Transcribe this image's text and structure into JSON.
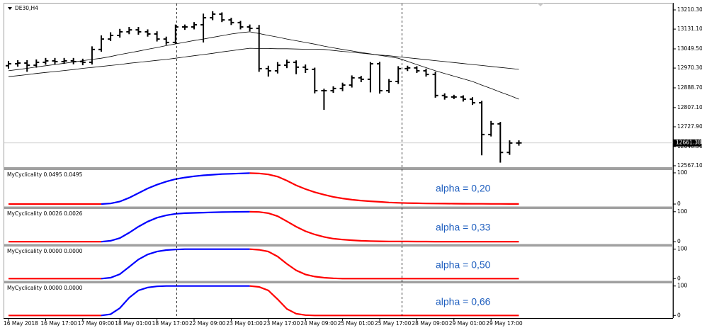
{
  "chart_data": [
    {
      "type": "ohlc",
      "title": "DE30,H4",
      "categories": [
        "16 May 2018",
        null,
        null,
        null,
        "16 May 17:00",
        null,
        null,
        null,
        "17 May 09:00",
        null,
        null,
        null,
        "18 May 01:00",
        null,
        null,
        null,
        "18 May 17:00",
        null,
        null,
        null,
        "22 May 09:00",
        null,
        null,
        null,
        "23 May 01:00",
        null,
        null,
        null,
        "23 May 17:00",
        null,
        null,
        null,
        "24 May 09:00",
        null,
        null,
        null,
        "25 May 01:00",
        null,
        null,
        null,
        "25 May 17:00",
        null,
        null,
        null,
        "28 May 09:00",
        null,
        null,
        null,
        "29 May 01:00",
        null,
        null,
        null,
        "29 May 17:00",
        null,
        null,
        null
      ],
      "open": [
        12980,
        12988,
        12991,
        12982,
        12994,
        13000,
        12997,
        13000,
        12997,
        12994,
        13047,
        13090,
        13105,
        13120,
        13128,
        13120,
        13111,
        13090,
        13076,
        13140,
        13140,
        13149,
        13178,
        13193,
        13169,
        13158,
        13140,
        13134,
        12968,
        12959,
        12982,
        12994,
        12974,
        12965,
        12877,
        12877,
        12886,
        12900,
        12930,
        12924,
        12988,
        12877,
        12915,
        12968,
        12971,
        12959,
        12944,
        12857,
        12851,
        12851,
        12842,
        12827,
        12696,
        12740,
        12622,
        12661
      ],
      "high": [
        13000,
        13003,
        13003,
        13006,
        13012,
        13012,
        13012,
        13012,
        13009,
        13060,
        13105,
        13118,
        13132,
        13140,
        13140,
        13130,
        13122,
        13100,
        13150,
        13150,
        13160,
        13195,
        13205,
        13200,
        13178,
        13165,
        13150,
        13148,
        12980,
        12995,
        13005,
        13002,
        12985,
        12972,
        12885,
        12895,
        12910,
        12940,
        12938,
        12995,
        12996,
        12925,
        12978,
        12980,
        12978,
        12968,
        12955,
        12866,
        12860,
        12858,
        12850,
        12835,
        12752,
        12748,
        12672,
        12672
      ],
      "low": [
        12968,
        12976,
        12955,
        12972,
        12984,
        12986,
        12988,
        12986,
        12982,
        12985,
        13038,
        13082,
        13096,
        13110,
        13108,
        13100,
        13080,
        13066,
        13070,
        13128,
        13130,
        13076,
        13168,
        13160,
        13148,
        13130,
        13122,
        12955,
        12935,
        12948,
        12970,
        12945,
        12950,
        12866,
        12798,
        12868,
        12875,
        12890,
        12912,
        12870,
        12865,
        12868,
        12905,
        12958,
        12950,
        12935,
        12848,
        12840,
        12842,
        12832,
        12818,
        12610,
        12688,
        12580,
        12612,
        12650
      ],
      "close": [
        12988,
        12991,
        12982,
        12994,
        13000,
        12997,
        13000,
        12997,
        12994,
        13047,
        13090,
        13105,
        13120,
        13128,
        13120,
        13111,
        13090,
        13076,
        13140,
        13140,
        13149,
        13178,
        13193,
        13169,
        13158,
        13140,
        13134,
        12968,
        12959,
        12982,
        12994,
        12974,
        12965,
        12877,
        12877,
        12886,
        12900,
        12930,
        12924,
        12988,
        12877,
        12915,
        12968,
        12971,
        12959,
        12944,
        12857,
        12851,
        12851,
        12842,
        12827,
        12696,
        12740,
        12622,
        12661,
        12661.38
      ],
      "color": "#000000",
      "moving_averages": [
        {
          "color": "#000000",
          "values": [
            12959,
            12964,
            12969,
            12975,
            12980,
            12985,
            12990,
            12995,
            13001,
            13006,
            13011,
            13018,
            13026,
            13033,
            13040,
            13048,
            13055,
            13063,
            13070,
            13077,
            13084,
            13090,
            13097,
            13104,
            13111,
            13116,
            13120,
            13113,
            13105,
            13098,
            13090,
            13083,
            13076,
            13069,
            13061,
            13054,
            13047,
            13041,
            13035,
            13029,
            13023,
            13017,
            13011,
            12998,
            12985,
            12972,
            12959,
            12948,
            12937,
            12926,
            12915,
            12900,
            12886,
            12871,
            12857,
            12842
          ]
        },
        {
          "color": "#000000",
          "values": [
            12935,
            12939,
            12943,
            12948,
            12952,
            12956,
            12960,
            12964,
            12969,
            12973,
            12977,
            12981,
            12985,
            12990,
            12994,
            12998,
            13002,
            13006,
            13011,
            13016,
            13021,
            13026,
            13031,
            13037,
            13042,
            13047,
            13052,
            13051,
            13051,
            13050,
            13050,
            13049,
            13048,
            13048,
            13047,
            13043,
            13039,
            13036,
            13032,
            13028,
            13024,
            13021,
            13017,
            13013,
            13009,
            13005,
            13001,
            12997,
            12993,
            12989,
            12985,
            12981,
            12977,
            12973,
            12969,
            12965
          ]
        }
      ],
      "last_price": {
        "value": 12661.38,
        "label": "12661.38"
      },
      "ylim": [
        12561.2,
        13236.6
      ],
      "yticks": [
        {
          "value": 13210.3,
          "label": "13210.30"
        },
        {
          "value": 13131.1,
          "label": "13131.10"
        },
        {
          "value": 13049.5,
          "label": "13049.50"
        },
        {
          "value": 12970.3,
          "label": "12970.30"
        },
        {
          "value": 12888.7,
          "label": "12888.70"
        },
        {
          "value": 12807.1,
          "label": "12807.10"
        },
        {
          "value": 12727.9,
          "label": "12727.90"
        },
        {
          "value": 12646.3,
          "label": "12646.30"
        },
        {
          "value": 12567.1,
          "label": "12567.10"
        }
      ]
    },
    {
      "type": "line",
      "title": "MyCyclicality 0.0495 0.0495",
      "annotation": "alpha = 0,20",
      "up_color": "#0000ff",
      "down_color": "#ff0000",
      "values": [
        0,
        0,
        0,
        0,
        0,
        0,
        0,
        0,
        0,
        0,
        0,
        2,
        8,
        20,
        35,
        50,
        62,
        72,
        80,
        85,
        89,
        92,
        94,
        96,
        97,
        98,
        99,
        98,
        95,
        88,
        75,
        60,
        48,
        38,
        30,
        23,
        18,
        14,
        11,
        9,
        7,
        5,
        4,
        3,
        2.5,
        2,
        1.7,
        1.4,
        1.2,
        1,
        0.8,
        0.7,
        0.6,
        0.5,
        0.4,
        0.3
      ],
      "ylim": [
        -9,
        109
      ],
      "yticks": [
        100,
        0
      ]
    },
    {
      "type": "line",
      "title": "MyCyclicality 0.0026 0.0026",
      "annotation": "alpha = 0,33",
      "up_color": "#0000ff",
      "down_color": "#ff0000",
      "values": [
        0,
        0,
        0,
        0,
        0,
        0,
        0,
        0,
        0,
        0,
        0,
        3,
        12,
        30,
        50,
        67,
        80,
        88,
        93,
        95,
        96,
        97,
        98,
        98.5,
        99,
        99.5,
        99.7,
        99,
        95,
        85,
        68,
        50,
        35,
        24,
        16,
        10,
        7,
        5,
        3,
        2,
        1.5,
        1,
        0.8,
        0.6,
        0.5,
        0.4,
        0.3,
        0.2,
        0.1,
        0,
        0,
        0,
        0,
        0,
        0,
        0
      ],
      "ylim": [
        -9,
        109
      ],
      "yticks": [
        100,
        0
      ]
    },
    {
      "type": "line",
      "title": "MyCyclicality 0.0000 0.0000",
      "annotation": "alpha = 0,50",
      "up_color": "#0000ff",
      "down_color": "#ff0000",
      "values": [
        0,
        0,
        0,
        0,
        0,
        0,
        0,
        0,
        0,
        0,
        0,
        3,
        15,
        40,
        65,
        82,
        92,
        97,
        99,
        100,
        100,
        100,
        100,
        100,
        100,
        100,
        100,
        98,
        92,
        75,
        50,
        28,
        14,
        7,
        3,
        1,
        0,
        0,
        0,
        0,
        0,
        0,
        0,
        0,
        0,
        0,
        0,
        0,
        0,
        0,
        0,
        0,
        0,
        0,
        0,
        0
      ],
      "ylim": [
        -9,
        109
      ],
      "yticks": [
        100,
        0
      ]
    },
    {
      "type": "line",
      "title": "MyCyclicality 0.0000 0.0000",
      "annotation": "alpha = 0,66",
      "up_color": "#0000ff",
      "down_color": "#ff0000",
      "values": [
        0,
        0,
        0,
        0,
        0,
        0,
        0,
        0,
        0,
        0,
        0,
        4,
        25,
        60,
        85,
        95,
        99,
        100,
        100,
        100,
        100,
        100,
        100,
        100,
        100,
        100,
        100,
        97,
        85,
        55,
        22,
        6,
        1,
        0,
        0,
        0,
        0,
        0,
        0,
        0,
        0,
        0,
        0,
        0,
        0,
        0,
        0,
        0,
        0,
        0,
        0,
        0,
        0,
        0,
        0,
        0
      ],
      "ylim": [
        -9,
        109
      ],
      "yticks": [
        100,
        0
      ]
    }
  ]
}
